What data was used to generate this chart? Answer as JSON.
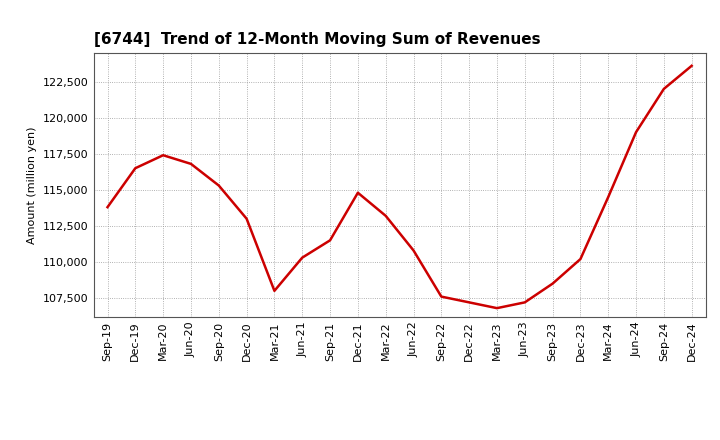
{
  "title": "[6744]  Trend of 12-Month Moving Sum of Revenues",
  "ylabel": "Amount (million yen)",
  "line_color": "#cc0000",
  "background_color": "#ffffff",
  "grid_color": "#999999",
  "ylim": [
    106200,
    124500
  ],
  "yticks": [
    107500,
    110000,
    112500,
    115000,
    117500,
    120000,
    122500
  ],
  "x_labels": [
    "Sep-19",
    "Dec-19",
    "Mar-20",
    "Jun-20",
    "Sep-20",
    "Dec-20",
    "Mar-21",
    "Jun-21",
    "Sep-21",
    "Dec-21",
    "Mar-22",
    "Jun-22",
    "Sep-22",
    "Dec-22",
    "Mar-23",
    "Jun-23",
    "Sep-23",
    "Dec-23",
    "Mar-24",
    "Jun-24",
    "Sep-24",
    "Dec-24"
  ],
  "values": [
    113800,
    116500,
    117400,
    116800,
    115300,
    113000,
    108000,
    110300,
    111500,
    114800,
    113200,
    110800,
    107600,
    107200,
    106800,
    107200,
    108500,
    110200,
    114500,
    119000,
    122000,
    123600
  ],
  "title_fontsize": 11,
  "label_fontsize": 8,
  "tick_fontsize": 8
}
